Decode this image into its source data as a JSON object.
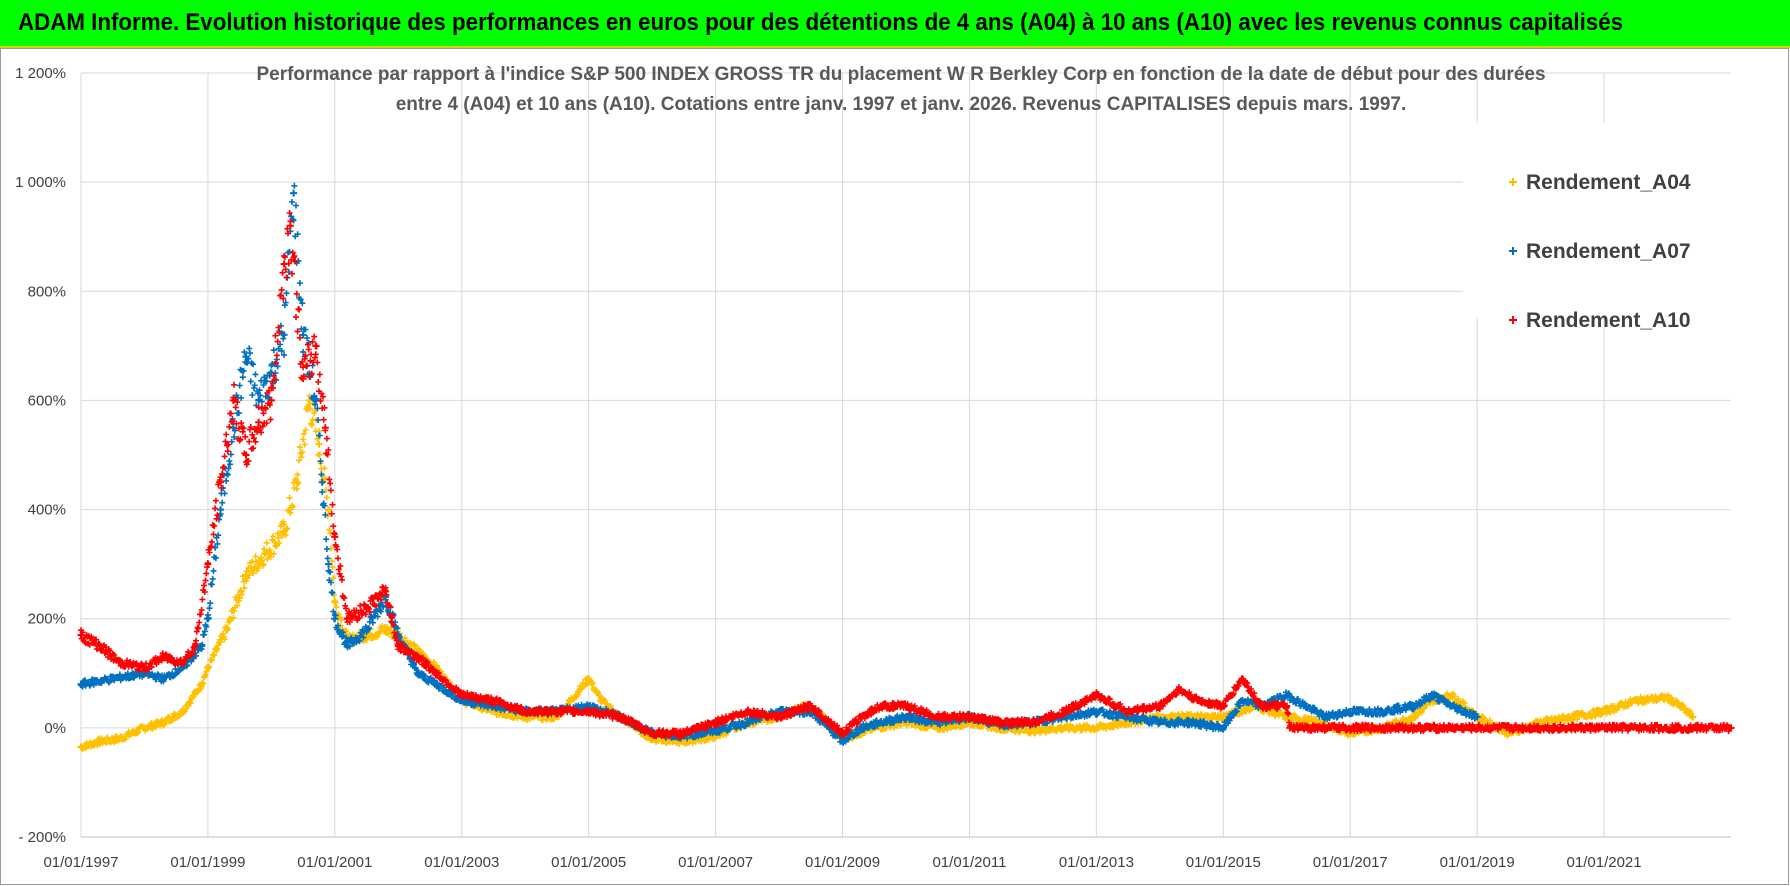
{
  "header": {
    "title": "ADAM Informe. Evolution historique des performances en euros pour des détentions de 4 ans (A04) à 10 ans (A10) avec les revenus connus capitalisés"
  },
  "colors": {
    "banner": "#00ff00",
    "A04": "#ffc000",
    "A07": "#0070c0",
    "A10": "#ff0000"
  },
  "chart_data": {
    "type": "scatter",
    "title_line1": "Performance par rapport à l'indice S&P 500 INDEX GROSS TR  du placement W R Berkley Corp en fonction de la date de début pour des durées",
    "title_line2": "entre 4 (A04) et 10 ans (A10). Cotations entre janv. 1997 et janv. 2026. Revenus CAPITALISES depuis mars. 1997.",
    "xlabel": "",
    "ylabel": "",
    "xlim": [
      1997.0,
      2023.0
    ],
    "ylim": [
      -200,
      1200
    ],
    "y_ticks": [
      -200,
      0,
      200,
      400,
      600,
      800,
      1000,
      1200
    ],
    "y_tick_labels": [
      "- 200%",
      "0%",
      "200%",
      "400%",
      "600%",
      "800%",
      "1 000%",
      "1 200%"
    ],
    "x_ticks": [
      1997,
      1999,
      2001,
      2003,
      2005,
      2007,
      2009,
      2011,
      2013,
      2015,
      2017,
      2019,
      2021
    ],
    "x_tick_labels": [
      "01/01/1997",
      "01/01/1999",
      "01/01/2001",
      "01/01/2003",
      "01/01/2005",
      "01/01/2007",
      "01/01/2009",
      "01/01/2011",
      "01/01/2013",
      "01/01/2015",
      "01/01/2017",
      "01/01/2019",
      "01/01/2021"
    ],
    "legend_position": "right",
    "series": [
      {
        "name": "Rendement_A04",
        "key": "A04",
        "points": [
          [
            1997.0,
            -35
          ],
          [
            1997.3,
            -25
          ],
          [
            1997.6,
            -20
          ],
          [
            1998.0,
            0
          ],
          [
            1998.3,
            10
          ],
          [
            1998.6,
            30
          ],
          [
            1998.9,
            80
          ],
          [
            1999.0,
            110
          ],
          [
            1999.3,
            180
          ],
          [
            1999.6,
            280
          ],
          [
            1999.9,
            320
          ],
          [
            2000.2,
            360
          ],
          [
            2000.4,
            450
          ],
          [
            2000.6,
            600
          ],
          [
            2000.75,
            520
          ],
          [
            2000.9,
            400
          ],
          [
            2001.0,
            230
          ],
          [
            2001.2,
            160
          ],
          [
            2001.5,
            170
          ],
          [
            2001.8,
            180
          ],
          [
            2002.0,
            170
          ],
          [
            2002.3,
            140
          ],
          [
            2002.6,
            110
          ],
          [
            2003.0,
            50
          ],
          [
            2003.5,
            30
          ],
          [
            2004.0,
            20
          ],
          [
            2004.5,
            20
          ],
          [
            2005.0,
            90
          ],
          [
            2005.2,
            50
          ],
          [
            2005.5,
            20
          ],
          [
            2006.0,
            -20
          ],
          [
            2006.5,
            -25
          ],
          [
            2007.0,
            -15
          ],
          [
            2007.5,
            10
          ],
          [
            2008.0,
            20
          ],
          [
            2008.4,
            40
          ],
          [
            2008.7,
            20
          ],
          [
            2009.0,
            -20
          ],
          [
            2009.5,
            0
          ],
          [
            2010.0,
            10
          ],
          [
            2010.5,
            0
          ],
          [
            2011.0,
            10
          ],
          [
            2011.5,
            0
          ],
          [
            2012.0,
            -5
          ],
          [
            2012.5,
            0
          ],
          [
            2013.0,
            0
          ],
          [
            2013.5,
            10
          ],
          [
            2014.0,
            20
          ],
          [
            2014.5,
            20
          ],
          [
            2015.0,
            20
          ],
          [
            2015.5,
            40
          ],
          [
            2016.0,
            20
          ],
          [
            2016.5,
            10
          ],
          [
            2017.0,
            -10
          ],
          [
            2017.5,
            0
          ],
          [
            2018.0,
            20
          ],
          [
            2018.3,
            50
          ],
          [
            2018.6,
            60
          ],
          [
            2019.0,
            20
          ],
          [
            2019.5,
            -10
          ],
          [
            2020.0,
            10
          ],
          [
            2020.5,
            20
          ],
          [
            2021.0,
            30
          ],
          [
            2021.5,
            50
          ],
          [
            2022.0,
            55
          ],
          [
            2022.2,
            40
          ],
          [
            2022.4,
            20
          ]
        ]
      },
      {
        "name": "Rendement_A07",
        "key": "A07",
        "points": [
          [
            1997.0,
            80
          ],
          [
            1997.5,
            90
          ],
          [
            1998.0,
            100
          ],
          [
            1998.3,
            90
          ],
          [
            1998.6,
            110
          ],
          [
            1998.9,
            150
          ],
          [
            1999.0,
            200
          ],
          [
            1999.2,
            400
          ],
          [
            1999.4,
            550
          ],
          [
            1999.6,
            680
          ],
          [
            1999.8,
            600
          ],
          [
            2000.0,
            650
          ],
          [
            2000.2,
            720
          ],
          [
            2000.35,
            980
          ],
          [
            2000.5,
            720
          ],
          [
            2000.7,
            600
          ],
          [
            2000.8,
            450
          ],
          [
            2000.9,
            300
          ],
          [
            2001.0,
            200
          ],
          [
            2001.2,
            150
          ],
          [
            2001.5,
            180
          ],
          [
            2001.8,
            240
          ],
          [
            2002.0,
            170
          ],
          [
            2002.3,
            100
          ],
          [
            2002.6,
            80
          ],
          [
            2003.0,
            50
          ],
          [
            2003.5,
            40
          ],
          [
            2004.0,
            30
          ],
          [
            2004.5,
            30
          ],
          [
            2005.0,
            40
          ],
          [
            2005.5,
            20
          ],
          [
            2006.0,
            -10
          ],
          [
            2006.5,
            -15
          ],
          [
            2007.0,
            -5
          ],
          [
            2007.5,
            10
          ],
          [
            2008.0,
            30
          ],
          [
            2008.5,
            30
          ],
          [
            2009.0,
            -25
          ],
          [
            2009.3,
            0
          ],
          [
            2009.6,
            10
          ],
          [
            2010.0,
            20
          ],
          [
            2010.5,
            10
          ],
          [
            2011.0,
            20
          ],
          [
            2011.5,
            5
          ],
          [
            2012.0,
            10
          ],
          [
            2012.5,
            20
          ],
          [
            2013.0,
            30
          ],
          [
            2013.5,
            20
          ],
          [
            2014.0,
            10
          ],
          [
            2014.5,
            10
          ],
          [
            2015.0,
            0
          ],
          [
            2015.3,
            50
          ],
          [
            2015.6,
            40
          ],
          [
            2016.0,
            60
          ],
          [
            2016.3,
            40
          ],
          [
            2016.6,
            20
          ],
          [
            2017.0,
            30
          ],
          [
            2017.5,
            30
          ],
          [
            2018.0,
            40
          ],
          [
            2018.3,
            60
          ],
          [
            2018.6,
            40
          ],
          [
            2019.0,
            20
          ]
        ]
      },
      {
        "name": "Rendement_A10",
        "key": "A10",
        "points": [
          [
            1997.0,
            170
          ],
          [
            1997.3,
            150
          ],
          [
            1997.6,
            120
          ],
          [
            1998.0,
            110
          ],
          [
            1998.3,
            130
          ],
          [
            1998.6,
            120
          ],
          [
            1998.8,
            150
          ],
          [
            1999.0,
            300
          ],
          [
            1999.2,
            450
          ],
          [
            1999.4,
            600
          ],
          [
            1999.6,
            500
          ],
          [
            1999.8,
            560
          ],
          [
            2000.0,
            600
          ],
          [
            2000.2,
            850
          ],
          [
            2000.3,
            920
          ],
          [
            2000.5,
            640
          ],
          [
            2000.7,
            700
          ],
          [
            2000.85,
            550
          ],
          [
            2001.0,
            350
          ],
          [
            2001.2,
            200
          ],
          [
            2001.5,
            220
          ],
          [
            2001.8,
            250
          ],
          [
            2002.0,
            150
          ],
          [
            2002.3,
            130
          ],
          [
            2002.6,
            100
          ],
          [
            2003.0,
            60
          ],
          [
            2003.5,
            50
          ],
          [
            2004.0,
            30
          ],
          [
            2004.5,
            30
          ],
          [
            2005.0,
            30
          ],
          [
            2005.5,
            20
          ],
          [
            2006.0,
            -10
          ],
          [
            2006.5,
            -10
          ],
          [
            2007.0,
            10
          ],
          [
            2007.5,
            30
          ],
          [
            2008.0,
            20
          ],
          [
            2008.5,
            40
          ],
          [
            2009.0,
            -10
          ],
          [
            2009.3,
            20
          ],
          [
            2009.6,
            40
          ],
          [
            2010.0,
            40
          ],
          [
            2010.5,
            20
          ],
          [
            2011.0,
            20
          ],
          [
            2011.5,
            10
          ],
          [
            2012.0,
            10
          ],
          [
            2012.5,
            30
          ],
          [
            2013.0,
            60
          ],
          [
            2013.5,
            30
          ],
          [
            2014.0,
            40
          ],
          [
            2014.3,
            70
          ],
          [
            2014.6,
            50
          ],
          [
            2015.0,
            40
          ],
          [
            2015.3,
            90
          ],
          [
            2015.6,
            40
          ],
          [
            2016.0,
            40
          ],
          [
            2016.05,
            0
          ],
          [
            2023.0,
            0
          ]
        ]
      }
    ]
  }
}
